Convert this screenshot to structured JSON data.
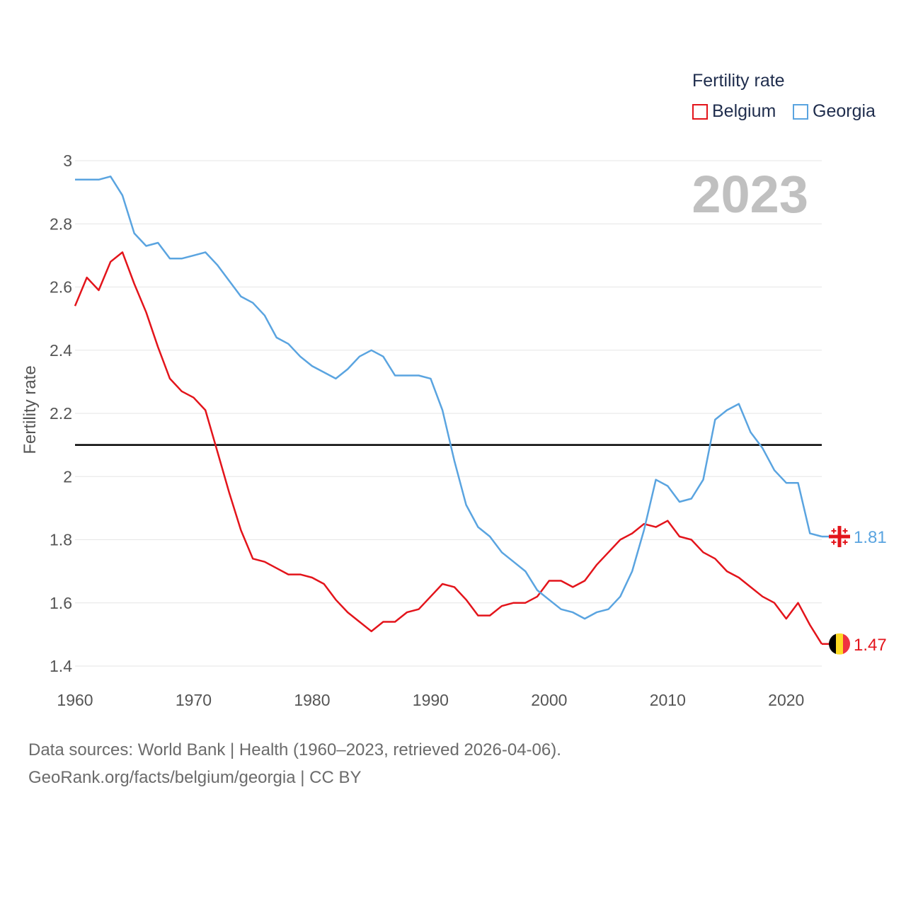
{
  "chart_data": {
    "type": "line",
    "title": "Fertility rate",
    "xlabel": "",
    "ylabel": "Fertility rate",
    "watermark_year": "2023",
    "xlim": [
      1960,
      2023
    ],
    "ylim": [
      1.4,
      3.0
    ],
    "x_ticks": [
      1960,
      1970,
      1980,
      1990,
      2000,
      2010,
      2020
    ],
    "y_ticks": [
      1.4,
      1.6,
      1.8,
      2,
      2.2,
      2.4,
      2.6,
      2.8,
      3
    ],
    "x_tick_labels": [
      "1960",
      "1970",
      "1980",
      "1990",
      "2000",
      "2010",
      "2020"
    ],
    "y_tick_labels": [
      "1.4",
      "1.6",
      "1.8",
      "2",
      "2.2",
      "2.4",
      "2.6",
      "2.8",
      "3"
    ],
    "grid": true,
    "legend_position": "top-right",
    "reference_line": {
      "value": 2.1,
      "color": "#000000"
    },
    "x": [
      1960,
      1961,
      1962,
      1963,
      1964,
      1965,
      1966,
      1967,
      1968,
      1969,
      1970,
      1971,
      1972,
      1973,
      1974,
      1975,
      1976,
      1977,
      1978,
      1979,
      1980,
      1981,
      1982,
      1983,
      1984,
      1985,
      1986,
      1987,
      1988,
      1989,
      1990,
      1991,
      1992,
      1993,
      1994,
      1995,
      1996,
      1997,
      1998,
      1999,
      2000,
      2001,
      2002,
      2003,
      2004,
      2005,
      2006,
      2007,
      2008,
      2009,
      2010,
      2011,
      2012,
      2013,
      2014,
      2015,
      2016,
      2017,
      2018,
      2019,
      2020,
      2021,
      2022,
      2023
    ],
    "series": [
      {
        "name": "Belgium",
        "color": "#e3141b",
        "end_label": "1.47",
        "flag": "belgium-flag",
        "values": [
          2.54,
          2.63,
          2.59,
          2.68,
          2.71,
          2.61,
          2.52,
          2.41,
          2.31,
          2.27,
          2.25,
          2.21,
          2.08,
          1.95,
          1.83,
          1.74,
          1.73,
          1.71,
          1.69,
          1.69,
          1.68,
          1.66,
          1.61,
          1.57,
          1.54,
          1.51,
          1.54,
          1.54,
          1.57,
          1.58,
          1.62,
          1.66,
          1.65,
          1.61,
          1.56,
          1.56,
          1.59,
          1.6,
          1.6,
          1.62,
          1.67,
          1.67,
          1.65,
          1.67,
          1.72,
          1.76,
          1.8,
          1.82,
          1.85,
          1.84,
          1.86,
          1.81,
          1.8,
          1.76,
          1.74,
          1.7,
          1.68,
          1.65,
          1.62,
          1.6,
          1.55,
          1.6,
          1.53,
          1.47
        ]
      },
      {
        "name": "Georgia",
        "color": "#5aa4e0",
        "end_label": "1.81",
        "flag": "georgia-flag",
        "values": [
          2.94,
          2.94,
          2.94,
          2.95,
          2.89,
          2.77,
          2.73,
          2.74,
          2.69,
          2.69,
          2.7,
          2.71,
          2.67,
          2.62,
          2.57,
          2.55,
          2.51,
          2.44,
          2.42,
          2.38,
          2.35,
          2.33,
          2.31,
          2.34,
          2.38,
          2.4,
          2.38,
          2.32,
          2.32,
          2.32,
          2.31,
          2.21,
          2.05,
          1.91,
          1.84,
          1.81,
          1.76,
          1.73,
          1.7,
          1.64,
          1.61,
          1.58,
          1.57,
          1.55,
          1.57,
          1.58,
          1.62,
          1.7,
          1.83,
          1.99,
          1.97,
          1.92,
          1.93,
          1.99,
          2.18,
          2.21,
          2.23,
          2.14,
          2.09,
          2.02,
          1.98,
          1.98,
          1.82,
          1.81
        ]
      }
    ]
  },
  "legend": {
    "title": "Fertility rate",
    "items": [
      "Belgium",
      "Georgia"
    ]
  },
  "footer": {
    "line1": "Data sources: World Bank | Health (1960–2023, retrieved 2026-04-06).",
    "line2": "GeoRank.org/facts/belgium/georgia | CC BY"
  }
}
